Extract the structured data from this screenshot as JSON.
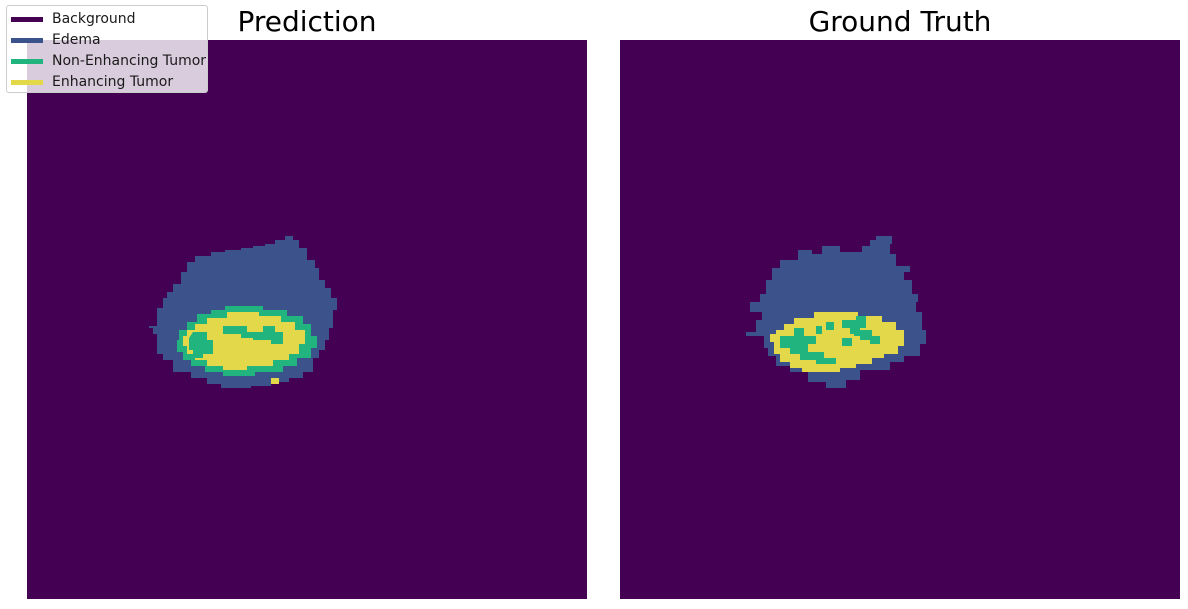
{
  "panels": [
    {
      "title": "Prediction"
    },
    {
      "title": "Ground Truth"
    }
  ],
  "legend": {
    "items": [
      {
        "label": "Background",
        "color": "#440154"
      },
      {
        "label": "Edema",
        "color": "#3b528b"
      },
      {
        "label": "Non-Enhancing Tumor",
        "color": "#21b47f"
      },
      {
        "label": "Enhancing Tumor",
        "color": "#e2d84a"
      }
    ]
  },
  "colors": {
    "background": "#440154",
    "edema": "#3b528b",
    "non_enhancing": "#21b47f",
    "enhancing": "#e2d84a"
  }
}
